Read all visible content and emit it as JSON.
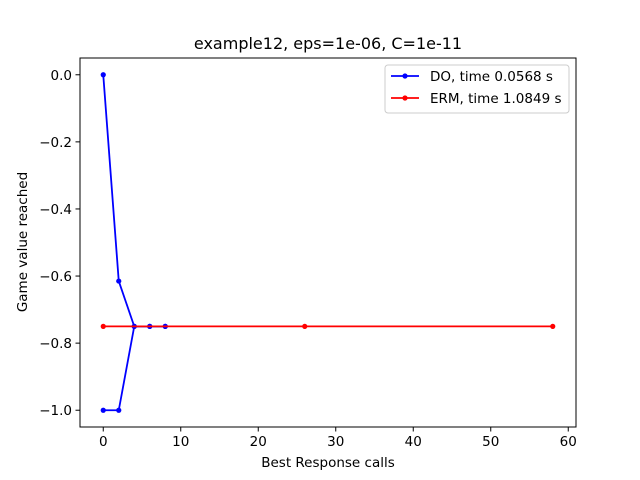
{
  "chart_data": {
    "type": "line",
    "title": "example12, eps=1e-06, C=1e-11",
    "xlabel": "Best Response calls",
    "ylabel": "Game value reached",
    "xlim": [
      -3,
      61
    ],
    "ylim": [
      -1.05,
      0.05
    ],
    "xticks": [
      0,
      10,
      20,
      30,
      40,
      50,
      60
    ],
    "xtick_labels": [
      "0",
      "10",
      "20",
      "30",
      "40",
      "50",
      "60"
    ],
    "yticks": [
      0.0,
      -0.2,
      -0.4,
      -0.6,
      -0.8,
      -1.0
    ],
    "ytick_labels": [
      "0.0",
      "−0.2",
      "−0.4",
      "−0.6",
      "−0.8",
      "−1.0"
    ],
    "grid": false,
    "legend_position": "top-right",
    "series": [
      {
        "name": "DO, time 0.0568 s",
        "color": "#0000ff",
        "branches": [
          {
            "x": [
              0,
              2,
              4,
              6,
              8
            ],
            "y": [
              0.0,
              -0.615,
              -0.75,
              -0.75,
              -0.75
            ]
          },
          {
            "x": [
              0,
              2,
              4,
              6,
              8
            ],
            "y": [
              -1.0,
              -1.0,
              -0.75,
              -0.75,
              -0.75
            ]
          }
        ]
      },
      {
        "name": "ERM, time 1.0849 s",
        "color": "#ff0000",
        "branches": [
          {
            "x": [
              0,
              26,
              58
            ],
            "y": [
              -0.75,
              -0.75,
              -0.75
            ]
          }
        ]
      }
    ]
  }
}
